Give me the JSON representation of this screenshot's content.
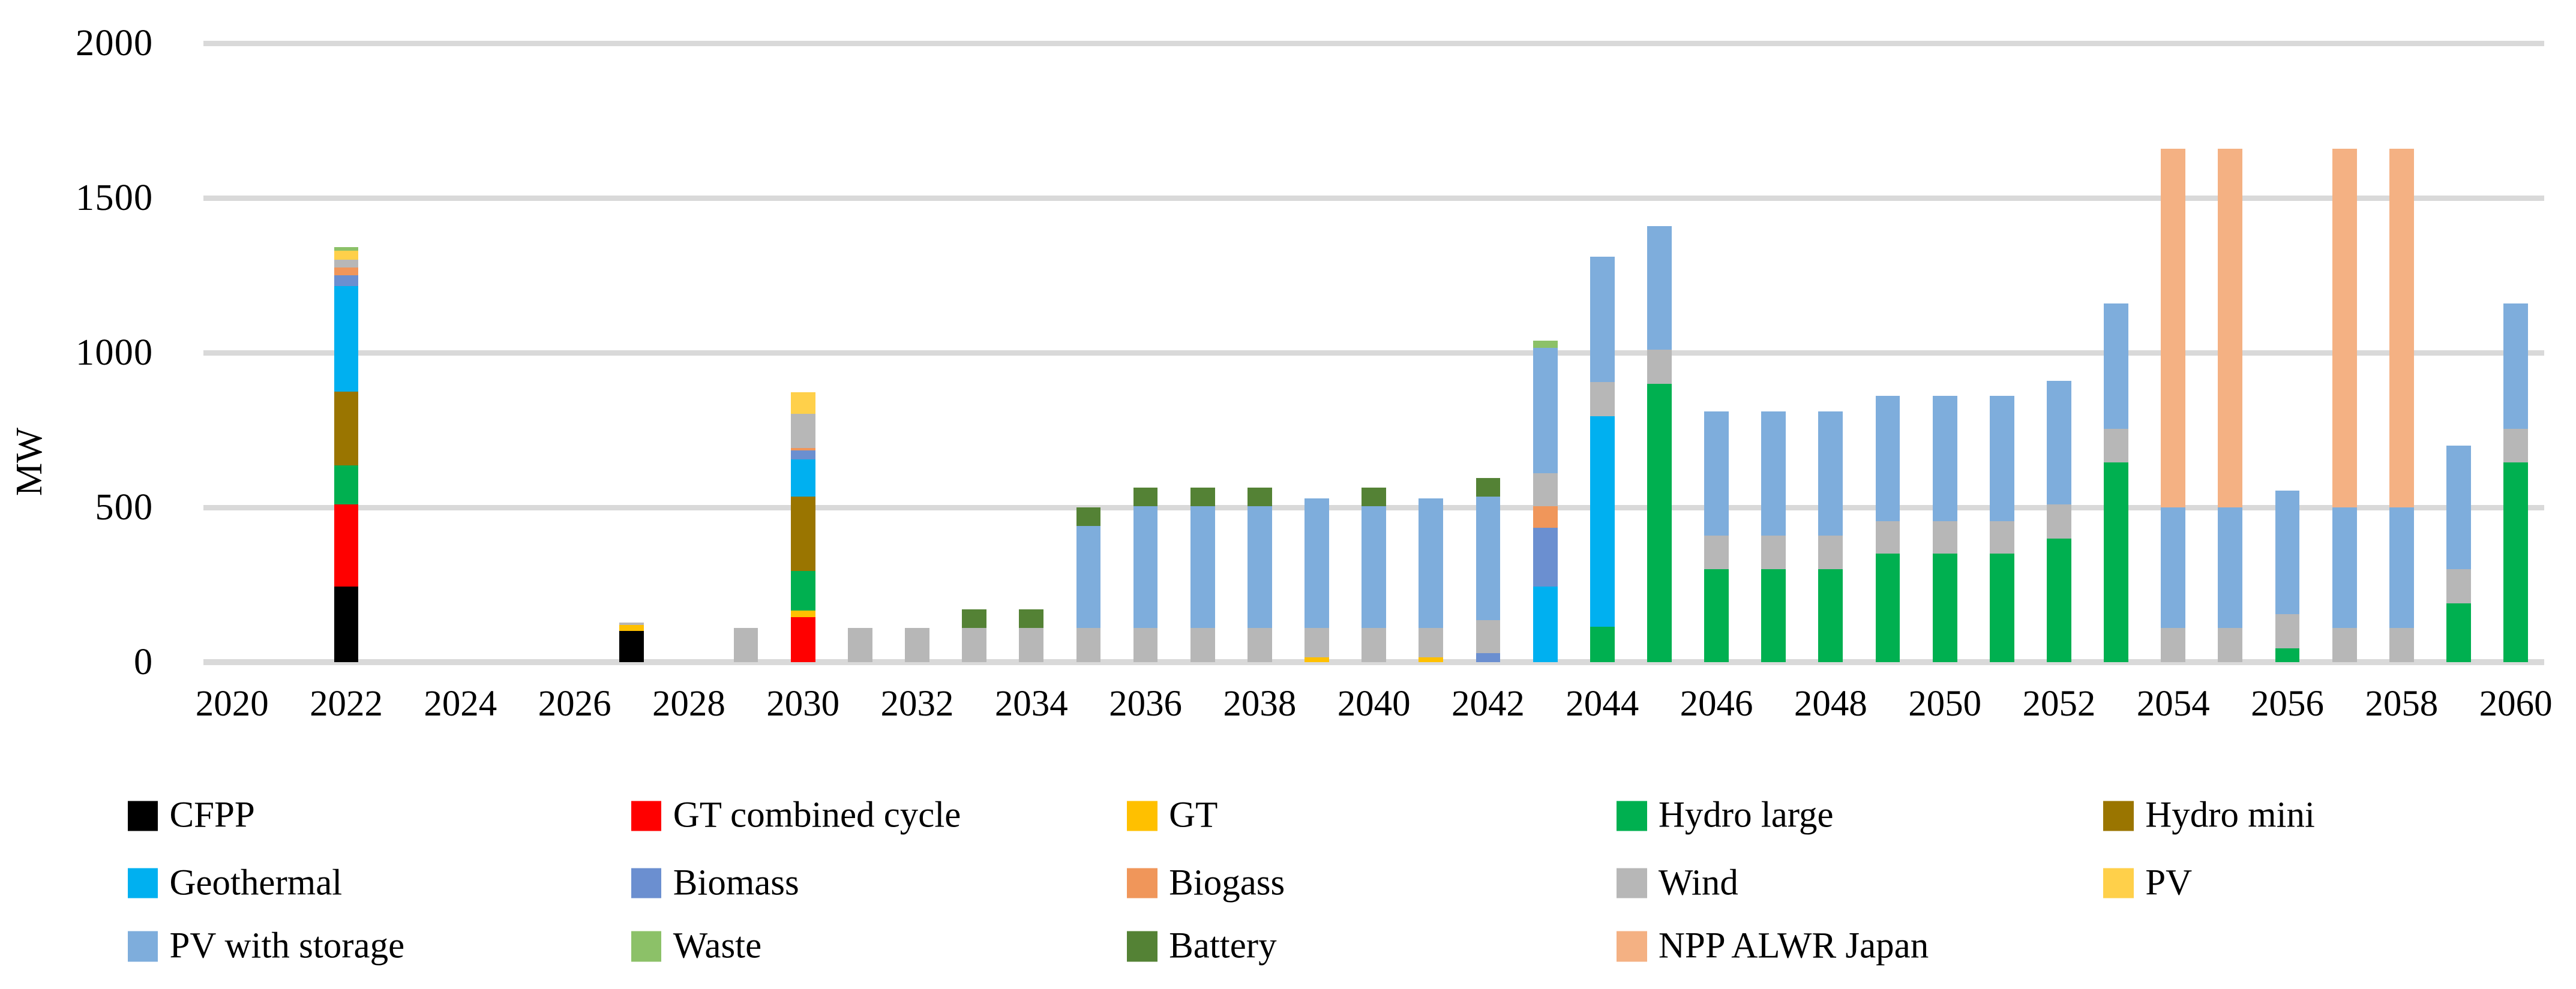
{
  "chart_data": {
    "type": "bar",
    "stacked": true,
    "title": "",
    "xlabel": "",
    "ylabel": "MW",
    "ylim": [
      0,
      2000
    ],
    "grid": true,
    "legend_position": "bottom",
    "y_tick_labels": [
      "0",
      "500",
      "1000",
      "1500",
      "2000"
    ],
    "y_ticks": [
      0,
      500,
      1000,
      1500,
      2000
    ],
    "x_tick_labels": [
      "2020",
      "2022",
      "2024",
      "2026",
      "2028",
      "2030",
      "2032",
      "2034",
      "2036",
      "2038",
      "2040",
      "2042",
      "2044",
      "2046",
      "2048",
      "2050",
      "2052",
      "2054",
      "2056",
      "2058",
      "2060"
    ],
    "categories": [
      2020,
      2021,
      2022,
      2023,
      2024,
      2025,
      2026,
      2027,
      2028,
      2029,
      2030,
      2031,
      2032,
      2033,
      2034,
      2035,
      2036,
      2037,
      2038,
      2039,
      2040,
      2041,
      2042,
      2043,
      2044,
      2045,
      2046,
      2047,
      2048,
      2049,
      2050,
      2051,
      2052,
      2053,
      2054,
      2055,
      2056,
      2057,
      2058,
      2059,
      2060
    ],
    "series": [
      {
        "name": "CFPP",
        "color": "#000000",
        "values": [
          0,
          0,
          245,
          0,
          0,
          0,
          0,
          100,
          0,
          0,
          0,
          0,
          0,
          0,
          0,
          0,
          0,
          0,
          0,
          0,
          0,
          0,
          0,
          0,
          0,
          0,
          0,
          0,
          0,
          0,
          0,
          0,
          0,
          0,
          0,
          0,
          0,
          0,
          0,
          0,
          0
        ]
      },
      {
        "name": "GT combined cycle",
        "color": "#FF0000",
        "values": [
          0,
          0,
          265,
          0,
          0,
          0,
          0,
          0,
          0,
          0,
          145,
          0,
          0,
          0,
          0,
          0,
          0,
          0,
          0,
          0,
          0,
          0,
          0,
          0,
          0,
          0,
          0,
          0,
          0,
          0,
          0,
          0,
          0,
          0,
          0,
          0,
          0,
          0,
          0,
          0,
          0
        ]
      },
      {
        "name": "GT",
        "color": "#FFC000",
        "values": [
          0,
          0,
          0,
          0,
          0,
          0,
          0,
          20,
          0,
          0,
          22,
          0,
          0,
          0,
          0,
          0,
          0,
          0,
          0,
          15,
          0,
          15,
          0,
          0,
          0,
          0,
          0,
          0,
          0,
          0,
          0,
          0,
          0,
          0,
          0,
          0,
          0,
          0,
          0,
          0,
          0
        ]
      },
      {
        "name": "Hydro large",
        "color": "#00B050",
        "values": [
          0,
          0,
          125,
          0,
          0,
          0,
          0,
          0,
          0,
          0,
          128,
          0,
          0,
          0,
          0,
          0,
          0,
          0,
          0,
          0,
          0,
          0,
          0,
          0,
          115,
          900,
          300,
          300,
          300,
          350,
          350,
          350,
          400,
          645,
          0,
          0,
          45,
          0,
          0,
          190,
          645
        ]
      },
      {
        "name": "Hydro mini",
        "color": "#9A7500",
        "values": [
          0,
          0,
          240,
          0,
          0,
          0,
          0,
          0,
          0,
          0,
          240,
          0,
          0,
          0,
          0,
          0,
          0,
          0,
          0,
          0,
          0,
          0,
          0,
          0,
          0,
          0,
          0,
          0,
          0,
          0,
          0,
          0,
          0,
          0,
          0,
          0,
          0,
          0,
          0,
          0,
          0
        ]
      },
      {
        "name": "Geothermal",
        "color": "#00B0F0",
        "values": [
          0,
          0,
          340,
          0,
          0,
          0,
          0,
          0,
          0,
          0,
          120,
          0,
          0,
          0,
          0,
          0,
          0,
          0,
          0,
          0,
          0,
          0,
          0,
          245,
          680,
          0,
          0,
          0,
          0,
          0,
          0,
          0,
          0,
          0,
          0,
          0,
          0,
          0,
          0,
          0,
          0
        ]
      },
      {
        "name": "Biomass",
        "color": "#6B8FD0",
        "values": [
          0,
          0,
          35,
          0,
          0,
          0,
          0,
          0,
          0,
          0,
          30,
          0,
          0,
          0,
          0,
          0,
          0,
          0,
          0,
          0,
          0,
          0,
          30,
          190,
          0,
          0,
          0,
          0,
          0,
          0,
          0,
          0,
          0,
          0,
          0,
          0,
          0,
          0,
          0,
          0,
          0
        ]
      },
      {
        "name": "Biogass",
        "color": "#F0965A",
        "values": [
          0,
          0,
          25,
          0,
          0,
          0,
          0,
          0,
          0,
          0,
          8,
          0,
          0,
          0,
          0,
          0,
          0,
          0,
          0,
          0,
          0,
          0,
          0,
          70,
          0,
          0,
          0,
          0,
          0,
          0,
          0,
          0,
          0,
          0,
          0,
          0,
          0,
          0,
          0,
          0,
          0
        ]
      },
      {
        "name": "Wind",
        "color": "#B7B7B7",
        "values": [
          0,
          0,
          25,
          0,
          0,
          0,
          0,
          8,
          0,
          110,
          110,
          110,
          110,
          110,
          110,
          110,
          110,
          110,
          110,
          95,
          110,
          95,
          105,
          105,
          110,
          110,
          110,
          110,
          110,
          105,
          105,
          105,
          110,
          110,
          110,
          110,
          110,
          110,
          110,
          110,
          110
        ]
      },
      {
        "name": "PV",
        "color": "#FFD04A",
        "values": [
          0,
          0,
          30,
          0,
          0,
          0,
          0,
          0,
          0,
          0,
          70,
          0,
          0,
          0,
          0,
          0,
          0,
          0,
          0,
          0,
          0,
          0,
          0,
          0,
          0,
          0,
          0,
          0,
          0,
          0,
          0,
          0,
          0,
          0,
          0,
          0,
          0,
          0,
          0,
          0,
          0
        ]
      },
      {
        "name": "PV with storage",
        "color": "#7EADDC",
        "values": [
          0,
          0,
          0,
          0,
          0,
          0,
          0,
          0,
          0,
          0,
          0,
          0,
          0,
          0,
          0,
          330,
          395,
          395,
          395,
          420,
          395,
          420,
          400,
          405,
          405,
          400,
          400,
          400,
          400,
          405,
          405,
          405,
          400,
          405,
          390,
          390,
          400,
          390,
          390,
          400,
          405
        ]
      },
      {
        "name": "Waste",
        "color": "#8CC168",
        "values": [
          0,
          0,
          12,
          0,
          0,
          0,
          0,
          0,
          0,
          0,
          0,
          0,
          0,
          0,
          0,
          0,
          0,
          0,
          0,
          0,
          0,
          0,
          0,
          25,
          0,
          0,
          0,
          0,
          0,
          0,
          0,
          0,
          0,
          0,
          0,
          0,
          0,
          0,
          0,
          0,
          0
        ]
      },
      {
        "name": "Battery",
        "color": "#548235",
        "values": [
          0,
          0,
          0,
          0,
          0,
          0,
          0,
          0,
          0,
          0,
          0,
          0,
          0,
          60,
          60,
          60,
          60,
          60,
          60,
          0,
          60,
          0,
          60,
          0,
          0,
          0,
          0,
          0,
          0,
          0,
          0,
          0,
          0,
          0,
          0,
          0,
          0,
          0,
          0,
          0,
          0
        ]
      },
      {
        "name": "NPP ALWR Japan",
        "color": "#F4B183",
        "values": [
          0,
          0,
          0,
          0,
          0,
          0,
          0,
          0,
          0,
          0,
          0,
          0,
          0,
          0,
          0,
          0,
          0,
          0,
          0,
          0,
          0,
          0,
          0,
          0,
          0,
          0,
          0,
          0,
          0,
          0,
          0,
          0,
          0,
          0,
          1160,
          1160,
          0,
          1160,
          1160,
          0,
          0
        ]
      }
    ]
  },
  "legend": {
    "rows": [
      [
        "CFPP",
        "GT combined cycle",
        "GT",
        "Hydro large",
        "Hydro mini"
      ],
      [
        "Geothermal",
        "Biomass",
        "Biogass",
        "Wind",
        "PV"
      ],
      [
        "PV with storage",
        "Waste",
        "Battery",
        "NPP ALWR Japan"
      ]
    ]
  },
  "style": {
    "gridline_color": "#D9D9D9",
    "background": "#FFFFFF",
    "text_color": "#000000"
  }
}
